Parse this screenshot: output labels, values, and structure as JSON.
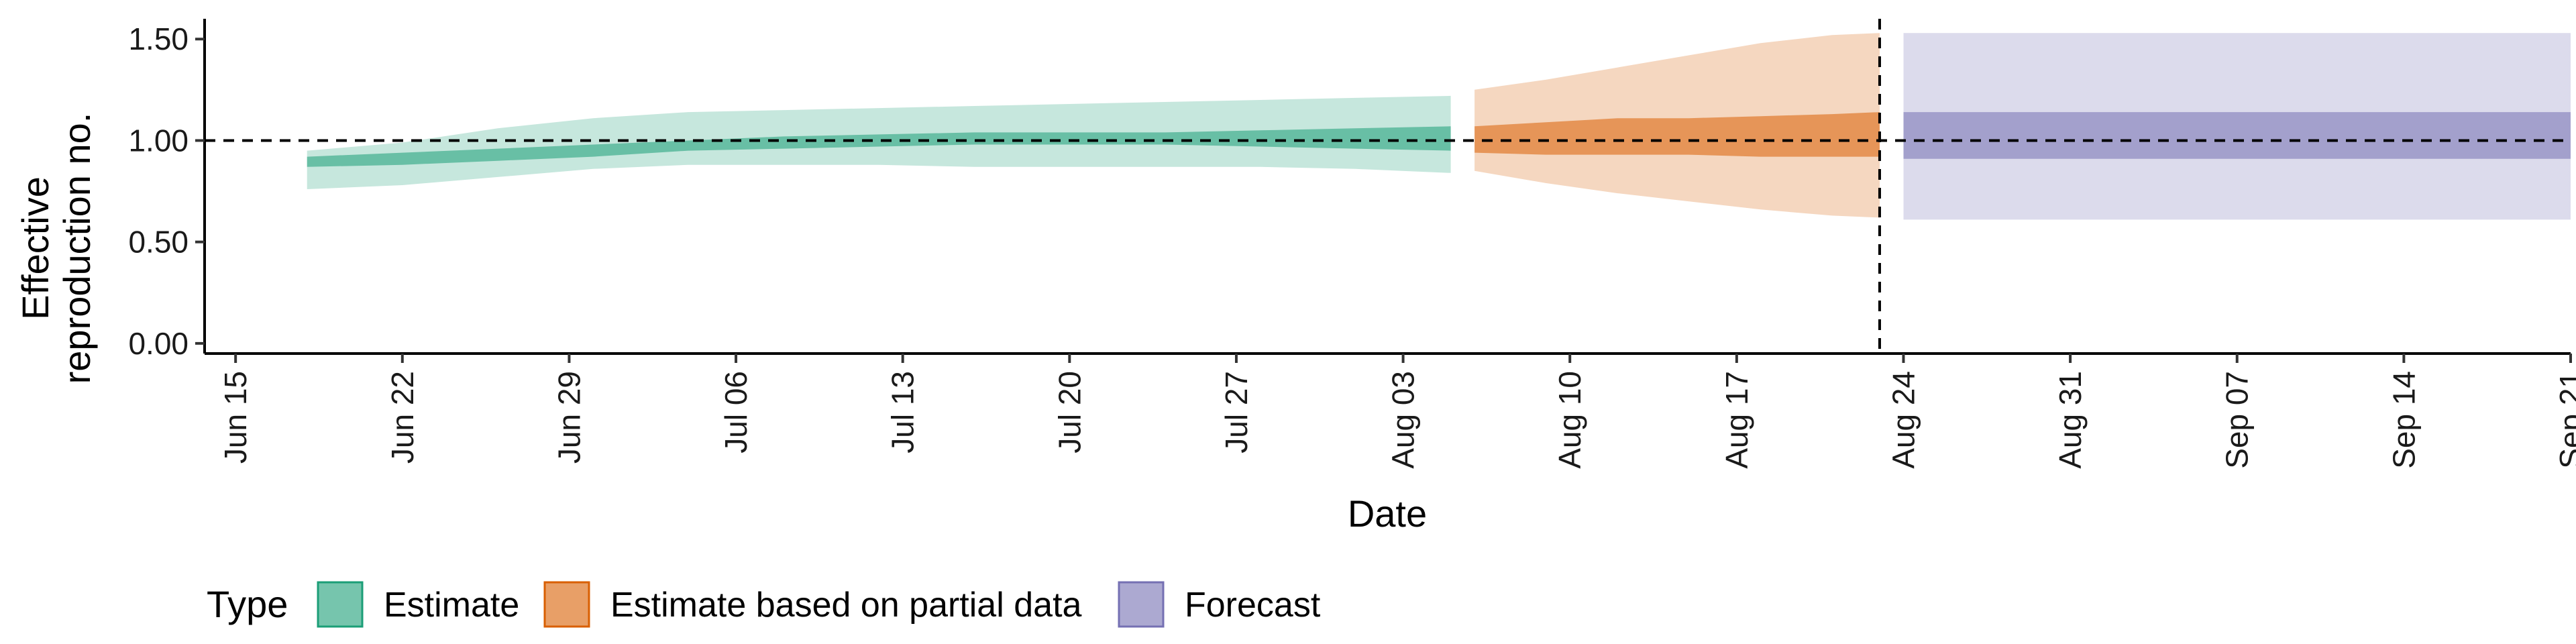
{
  "chart_data": {
    "type": "area",
    "xlabel": "Date",
    "ylabel_lines": [
      "Effective",
      "reproduction no."
    ],
    "ylim": [
      -0.05,
      1.6
    ],
    "yticks": [
      0.0,
      0.5,
      1.0,
      1.5
    ],
    "ytick_labels": [
      "0.00",
      "0.50",
      "1.00",
      "1.50"
    ],
    "x_origin_date": "2020-06-15",
    "x_range_days": [
      -1.3,
      98.0
    ],
    "xticks": [
      "2020-06-15",
      "2020-06-22",
      "2020-06-29",
      "2020-07-06",
      "2020-07-13",
      "2020-07-20",
      "2020-07-27",
      "2020-08-03",
      "2020-08-10",
      "2020-08-17",
      "2020-08-24",
      "2020-08-31",
      "2020-09-07",
      "2020-09-14",
      "2020-09-21"
    ],
    "xtick_labels": [
      "Jun 15",
      "Jun 22",
      "Jun 29",
      "Jul 06",
      "Jul 13",
      "Jul 20",
      "Jul 27",
      "Aug 03",
      "Aug 10",
      "Aug 17",
      "Aug 24",
      "Aug 31",
      "Sep 07",
      "Sep 14",
      "Sep 21"
    ],
    "reference_hline": 1.0,
    "reference_vline": "2020-08-23",
    "legend_title": "Type",
    "legend_position": "bottom-left",
    "colors": {
      "Estimate": "#1B9E77",
      "Estimate based on partial data": "#D95F02",
      "Forecast": "#7570B3"
    },
    "series": [
      {
        "name": "Estimate",
        "dates": [
          "2020-06-18",
          "2020-06-22",
          "2020-06-26",
          "2020-06-30",
          "2020-07-04",
          "2020-07-08",
          "2020-07-12",
          "2020-07-16",
          "2020-07-20",
          "2020-07-24",
          "2020-07-28",
          "2020-08-01",
          "2020-08-05"
        ],
        "lower90": [
          0.76,
          0.78,
          0.82,
          0.86,
          0.88,
          0.88,
          0.88,
          0.87,
          0.87,
          0.87,
          0.87,
          0.86,
          0.84
        ],
        "upper90": [
          0.95,
          0.99,
          1.06,
          1.11,
          1.14,
          1.15,
          1.16,
          1.17,
          1.18,
          1.19,
          1.2,
          1.21,
          1.22
        ],
        "lower50": [
          0.87,
          0.88,
          0.9,
          0.92,
          0.95,
          0.96,
          0.97,
          0.98,
          0.98,
          0.98,
          0.97,
          0.96,
          0.95
        ],
        "upper50": [
          0.92,
          0.94,
          0.96,
          0.98,
          1.0,
          1.02,
          1.03,
          1.04,
          1.04,
          1.04,
          1.05,
          1.06,
          1.07
        ]
      },
      {
        "name": "Estimate based on partial data",
        "dates": [
          "2020-08-06",
          "2020-08-09",
          "2020-08-12",
          "2020-08-15",
          "2020-08-18",
          "2020-08-21",
          "2020-08-23"
        ],
        "lower90": [
          0.85,
          0.79,
          0.74,
          0.7,
          0.66,
          0.63,
          0.62
        ],
        "upper90": [
          1.25,
          1.3,
          1.36,
          1.42,
          1.48,
          1.52,
          1.53
        ],
        "lower50": [
          0.94,
          0.93,
          0.93,
          0.93,
          0.92,
          0.92,
          0.92
        ],
        "upper50": [
          1.07,
          1.09,
          1.11,
          1.11,
          1.12,
          1.13,
          1.14
        ]
      },
      {
        "name": "Forecast",
        "dates": [
          "2020-08-24",
          "2020-09-21"
        ],
        "lower90": [
          0.61,
          0.61
        ],
        "upper90": [
          1.53,
          1.53
        ],
        "lower50": [
          0.91,
          0.91
        ],
        "upper50": [
          1.14,
          1.14
        ]
      }
    ]
  }
}
